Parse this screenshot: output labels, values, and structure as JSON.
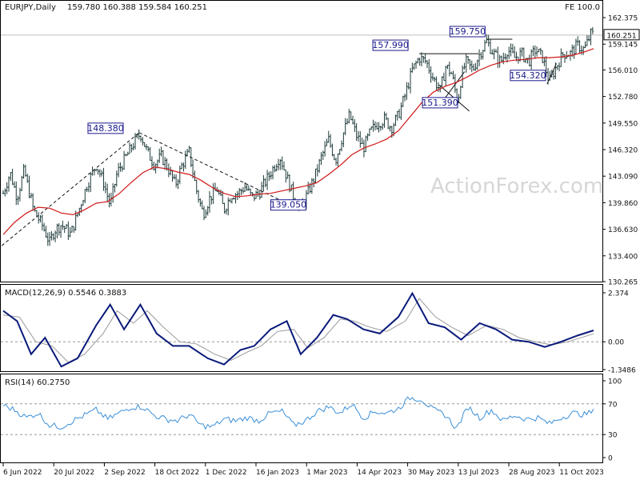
{
  "header": {
    "symbol_label": "EURJPY,Daily",
    "ohlc": "159.780 160.388 159.584 160.251",
    "fe_label": "FE 100.0",
    "watermark": "ActionForex.com"
  },
  "colors": {
    "candles": "#1f3a3a",
    "ma": "#d01818",
    "macd": "#0a1a7a",
    "signal": "#9a9a9a",
    "rsi": "#3b8fd8",
    "annotation": "#1a1a8c"
  },
  "chart_data": [
    {
      "type": "candlestick",
      "panel": "price",
      "ylim": [
        130.265,
        162.375
      ],
      "yticks": [
        "162.375",
        "159.145",
        "156.010",
        "152.780",
        "149.550",
        "146.320",
        "143.090",
        "139.860",
        "136.630",
        "133.400",
        "130.265"
      ],
      "last_price": "160.251",
      "x_dates": [
        "6 Jun 2022",
        "20 Jul 2022",
        "2 Sep 2022",
        "18 Oct 2022",
        "1 Dec 2022",
        "16 Jan 2023",
        "1 Mar 2023",
        "14 Apr 2023",
        "30 May 2023",
        "13 Jul 2023",
        "28 Aug 2023",
        "11 Oct 2023"
      ],
      "close_path": [
        {
          "d": 0,
          "v": 141.0
        },
        {
          "d": 6,
          "v": 143.5
        },
        {
          "d": 12,
          "v": 140.5
        },
        {
          "d": 18,
          "v": 143.8
        },
        {
          "d": 26,
          "v": 139.0
        },
        {
          "d": 34,
          "v": 137.0
        },
        {
          "d": 40,
          "v": 135.0
        },
        {
          "d": 44,
          "v": 136.5
        },
        {
          "d": 50,
          "v": 137.2
        },
        {
          "d": 58,
          "v": 136.0
        },
        {
          "d": 64,
          "v": 138.5
        },
        {
          "d": 72,
          "v": 142.0
        },
        {
          "d": 80,
          "v": 144.5
        },
        {
          "d": 86,
          "v": 142.5
        },
        {
          "d": 92,
          "v": 139.5
        },
        {
          "d": 98,
          "v": 143.5
        },
        {
          "d": 106,
          "v": 145.5
        },
        {
          "d": 112,
          "v": 147.0
        },
        {
          "d": 118,
          "v": 148.3
        },
        {
          "d": 124,
          "v": 146.0
        },
        {
          "d": 130,
          "v": 144.5
        },
        {
          "d": 136,
          "v": 145.5
        },
        {
          "d": 142,
          "v": 144.0
        },
        {
          "d": 148,
          "v": 142.0
        },
        {
          "d": 154,
          "v": 144.5
        },
        {
          "d": 160,
          "v": 146.0
        },
        {
          "d": 166,
          "v": 141.5
        },
        {
          "d": 172,
          "v": 138.5
        },
        {
          "d": 178,
          "v": 140.5
        },
        {
          "d": 184,
          "v": 141.5
        },
        {
          "d": 190,
          "v": 139.0
        },
        {
          "d": 196,
          "v": 140.8
        },
        {
          "d": 202,
          "v": 141.0
        },
        {
          "d": 208,
          "v": 141.8
        },
        {
          "d": 214,
          "v": 140.5
        },
        {
          "d": 220,
          "v": 141.0
        },
        {
          "d": 226,
          "v": 142.5
        },
        {
          "d": 232,
          "v": 144.0
        },
        {
          "d": 238,
          "v": 145.5
        },
        {
          "d": 244,
          "v": 143.0
        },
        {
          "d": 250,
          "v": 140.5
        },
        {
          "d": 256,
          "v": 139.2
        },
        {
          "d": 262,
          "v": 141.0
        },
        {
          "d": 268,
          "v": 143.0
        },
        {
          "d": 274,
          "v": 145.5
        },
        {
          "d": 280,
          "v": 147.5
        },
        {
          "d": 286,
          "v": 145.0
        },
        {
          "d": 292,
          "v": 148.0
        },
        {
          "d": 298,
          "v": 150.5
        },
        {
          "d": 304,
          "v": 148.0
        },
        {
          "d": 310,
          "v": 146.5
        },
        {
          "d": 316,
          "v": 148.5
        },
        {
          "d": 322,
          "v": 149.5
        },
        {
          "d": 328,
          "v": 150.0
        },
        {
          "d": 334,
          "v": 149.0
        },
        {
          "d": 340,
          "v": 150.5
        },
        {
          "d": 346,
          "v": 153.0
        },
        {
          "d": 352,
          "v": 156.0
        },
        {
          "d": 358,
          "v": 157.5
        },
        {
          "d": 364,
          "v": 157.0
        },
        {
          "d": 370,
          "v": 155.0
        },
        {
          "d": 376,
          "v": 153.5
        },
        {
          "d": 381,
          "v": 156.5
        },
        {
          "d": 386,
          "v": 155.5
        },
        {
          "d": 391,
          "v": 152.0
        },
        {
          "d": 394,
          "v": 155.0
        },
        {
          "d": 398,
          "v": 157.0
        },
        {
          "d": 404,
          "v": 156.0
        },
        {
          "d": 410,
          "v": 158.0
        },
        {
          "d": 416,
          "v": 159.5
        },
        {
          "d": 422,
          "v": 158.0
        },
        {
          "d": 428,
          "v": 157.0
        },
        {
          "d": 434,
          "v": 158.5
        },
        {
          "d": 440,
          "v": 157.5
        },
        {
          "d": 446,
          "v": 158.0
        },
        {
          "d": 452,
          "v": 157.0
        },
        {
          "d": 458,
          "v": 158.5
        },
        {
          "d": 464,
          "v": 157.5
        },
        {
          "d": 470,
          "v": 154.5
        },
        {
          "d": 476,
          "v": 156.5
        },
        {
          "d": 482,
          "v": 158.0
        },
        {
          "d": 488,
          "v": 158.0
        },
        {
          "d": 494,
          "v": 159.0
        },
        {
          "d": 500,
          "v": 158.5
        },
        {
          "d": 506,
          "v": 160.5
        },
        {
          "d": 508,
          "v": 160.25
        }
      ],
      "ma_path": [
        {
          "d": 0,
          "v": 136.0
        },
        {
          "d": 10,
          "v": 137.5
        },
        {
          "d": 20,
          "v": 138.6
        },
        {
          "d": 30,
          "v": 139.3
        },
        {
          "d": 40,
          "v": 139.2
        },
        {
          "d": 50,
          "v": 138.6
        },
        {
          "d": 60,
          "v": 138.4
        },
        {
          "d": 70,
          "v": 139.0
        },
        {
          "d": 80,
          "v": 139.8
        },
        {
          "d": 90,
          "v": 140.0
        },
        {
          "d": 100,
          "v": 141.0
        },
        {
          "d": 110,
          "v": 142.3
        },
        {
          "d": 120,
          "v": 143.5
        },
        {
          "d": 130,
          "v": 144.2
        },
        {
          "d": 140,
          "v": 144.0
        },
        {
          "d": 150,
          "v": 143.6
        },
        {
          "d": 160,
          "v": 143.3
        },
        {
          "d": 170,
          "v": 142.6
        },
        {
          "d": 180,
          "v": 141.7
        },
        {
          "d": 190,
          "v": 141.0
        },
        {
          "d": 200,
          "v": 140.6
        },
        {
          "d": 210,
          "v": 140.7
        },
        {
          "d": 220,
          "v": 140.9
        },
        {
          "d": 230,
          "v": 141.0
        },
        {
          "d": 240,
          "v": 141.3
        },
        {
          "d": 250,
          "v": 141.6
        },
        {
          "d": 260,
          "v": 141.9
        },
        {
          "d": 270,
          "v": 142.3
        },
        {
          "d": 280,
          "v": 143.3
        },
        {
          "d": 290,
          "v": 144.4
        },
        {
          "d": 300,
          "v": 145.7
        },
        {
          "d": 310,
          "v": 146.5
        },
        {
          "d": 320,
          "v": 147.0
        },
        {
          "d": 330,
          "v": 147.6
        },
        {
          "d": 340,
          "v": 148.6
        },
        {
          "d": 350,
          "v": 150.3
        },
        {
          "d": 360,
          "v": 152.0
        },
        {
          "d": 370,
          "v": 153.3
        },
        {
          "d": 380,
          "v": 154.0
        },
        {
          "d": 390,
          "v": 154.5
        },
        {
          "d": 400,
          "v": 155.2
        },
        {
          "d": 410,
          "v": 156.0
        },
        {
          "d": 420,
          "v": 156.6
        },
        {
          "d": 430,
          "v": 157.0
        },
        {
          "d": 440,
          "v": 157.2
        },
        {
          "d": 450,
          "v": 157.3
        },
        {
          "d": 460,
          "v": 157.5
        },
        {
          "d": 470,
          "v": 157.5
        },
        {
          "d": 480,
          "v": 157.6
        },
        {
          "d": 490,
          "v": 157.8
        },
        {
          "d": 500,
          "v": 158.2
        },
        {
          "d": 508,
          "v": 158.6
        }
      ],
      "annotations": [
        {
          "text": "148.380",
          "d": 117,
          "v": 148.38
        },
        {
          "text": "139.050",
          "d": 255,
          "v": 139.05
        },
        {
          "text": "157.990",
          "d": 358,
          "v": 157.99
        },
        {
          "text": "151.390",
          "d": 391,
          "v": 151.39
        },
        {
          "text": "159.750",
          "d": 416,
          "v": 159.75
        },
        {
          "text": "154.320",
          "d": 468,
          "v": 154.32
        }
      ],
      "trendlines": [
        {
          "from": {
            "d": -5,
            "v": 134.2
          },
          "to": {
            "d": 117,
            "v": 148.38
          }
        },
        {
          "from": {
            "d": 117,
            "v": 148.38
          },
          "to": {
            "d": 255,
            "v": 139.05
          }
        },
        {
          "from": {
            "d": 358,
            "v": 157.99
          },
          "to": {
            "d": 409,
            "v": 157.99
          }
        },
        {
          "from": {
            "d": 375,
            "v": 154.2
          },
          "to": {
            "d": 401,
            "v": 151.0
          }
        },
        {
          "from": {
            "d": 376,
            "v": 151.8
          },
          "to": {
            "d": 397,
            "v": 155.8
          }
        },
        {
          "from": {
            "d": 416,
            "v": 159.75
          },
          "to": {
            "d": 438,
            "v": 159.75
          }
        },
        {
          "from": {
            "d": 468,
            "v": 154.32
          },
          "to": {
            "d": 476,
            "v": 156.8
          }
        }
      ]
    },
    {
      "type": "line",
      "panel": "macd",
      "label": "MACD(12,26,9) 0.5546 0.3883",
      "ylim": [
        -1.3486,
        2.374
      ],
      "yticks": [
        "2.374",
        "0.00",
        "-1.3486"
      ],
      "macd_path": [
        {
          "d": 0,
          "v": 1.5
        },
        {
          "d": 12,
          "v": 1.0
        },
        {
          "d": 24,
          "v": -0.6
        },
        {
          "d": 36,
          "v": 0.2
        },
        {
          "d": 50,
          "v": -1.2
        },
        {
          "d": 64,
          "v": -0.8
        },
        {
          "d": 80,
          "v": 0.8
        },
        {
          "d": 92,
          "v": 1.8
        },
        {
          "d": 104,
          "v": 0.6
        },
        {
          "d": 118,
          "v": 1.8
        },
        {
          "d": 132,
          "v": 0.4
        },
        {
          "d": 146,
          "v": -0.2
        },
        {
          "d": 160,
          "v": -0.2
        },
        {
          "d": 176,
          "v": -0.8
        },
        {
          "d": 190,
          "v": -1.1
        },
        {
          "d": 204,
          "v": -0.4
        },
        {
          "d": 216,
          "v": -0.2
        },
        {
          "d": 230,
          "v": 0.6
        },
        {
          "d": 244,
          "v": 1.0
        },
        {
          "d": 256,
          "v": -0.6
        },
        {
          "d": 270,
          "v": 0.2
        },
        {
          "d": 284,
          "v": 1.3
        },
        {
          "d": 296,
          "v": 1.1
        },
        {
          "d": 310,
          "v": 0.6
        },
        {
          "d": 324,
          "v": 0.4
        },
        {
          "d": 340,
          "v": 1.2
        },
        {
          "d": 352,
          "v": 2.35
        },
        {
          "d": 366,
          "v": 0.9
        },
        {
          "d": 380,
          "v": 0.7
        },
        {
          "d": 394,
          "v": 0.1
        },
        {
          "d": 410,
          "v": 0.9
        },
        {
          "d": 424,
          "v": 0.6
        },
        {
          "d": 438,
          "v": 0.1
        },
        {
          "d": 452,
          "v": 0.0
        },
        {
          "d": 466,
          "v": -0.25
        },
        {
          "d": 480,
          "v": 0.0
        },
        {
          "d": 494,
          "v": 0.3
        },
        {
          "d": 508,
          "v": 0.55
        }
      ],
      "signal_path": [
        {
          "d": 0,
          "v": 1.3
        },
        {
          "d": 14,
          "v": 1.2
        },
        {
          "d": 28,
          "v": 0.0
        },
        {
          "d": 42,
          "v": -0.2
        },
        {
          "d": 56,
          "v": -1.0
        },
        {
          "d": 70,
          "v": -0.6
        },
        {
          "d": 86,
          "v": 0.4
        },
        {
          "d": 98,
          "v": 1.5
        },
        {
          "d": 112,
          "v": 0.9
        },
        {
          "d": 124,
          "v": 1.5
        },
        {
          "d": 138,
          "v": 0.7
        },
        {
          "d": 152,
          "v": 0.0
        },
        {
          "d": 166,
          "v": -0.1
        },
        {
          "d": 182,
          "v": -0.6
        },
        {
          "d": 196,
          "v": -0.9
        },
        {
          "d": 210,
          "v": -0.5
        },
        {
          "d": 222,
          "v": -0.2
        },
        {
          "d": 236,
          "v": 0.5
        },
        {
          "d": 250,
          "v": 0.6
        },
        {
          "d": 262,
          "v": -0.3
        },
        {
          "d": 276,
          "v": 0.2
        },
        {
          "d": 290,
          "v": 1.1
        },
        {
          "d": 302,
          "v": 1.0
        },
        {
          "d": 316,
          "v": 0.7
        },
        {
          "d": 330,
          "v": 0.5
        },
        {
          "d": 346,
          "v": 1.0
        },
        {
          "d": 358,
          "v": 2.1
        },
        {
          "d": 372,
          "v": 1.2
        },
        {
          "d": 386,
          "v": 0.7
        },
        {
          "d": 400,
          "v": 0.3
        },
        {
          "d": 416,
          "v": 0.8
        },
        {
          "d": 430,
          "v": 0.6
        },
        {
          "d": 444,
          "v": 0.2
        },
        {
          "d": 458,
          "v": 0.0
        },
        {
          "d": 472,
          "v": -0.15
        },
        {
          "d": 486,
          "v": 0.0
        },
        {
          "d": 500,
          "v": 0.25
        },
        {
          "d": 508,
          "v": 0.39
        }
      ]
    },
    {
      "type": "line",
      "panel": "rsi",
      "label": "RSI(14) 60.2750",
      "ylim": [
        0,
        100
      ],
      "yticks": [
        "100",
        "70",
        "30",
        "0"
      ],
      "levels": [
        70,
        30
      ],
      "rsi_path": [
        {
          "d": 0,
          "v": 68
        },
        {
          "d": 10,
          "v": 62
        },
        {
          "d": 20,
          "v": 52
        },
        {
          "d": 30,
          "v": 58
        },
        {
          "d": 40,
          "v": 42
        },
        {
          "d": 50,
          "v": 40
        },
        {
          "d": 60,
          "v": 48
        },
        {
          "d": 70,
          "v": 55
        },
        {
          "d": 80,
          "v": 62
        },
        {
          "d": 90,
          "v": 50
        },
        {
          "d": 100,
          "v": 58
        },
        {
          "d": 110,
          "v": 66
        },
        {
          "d": 120,
          "v": 66
        },
        {
          "d": 130,
          "v": 55
        },
        {
          "d": 140,
          "v": 50
        },
        {
          "d": 150,
          "v": 48
        },
        {
          "d": 160,
          "v": 56
        },
        {
          "d": 170,
          "v": 42
        },
        {
          "d": 180,
          "v": 40
        },
        {
          "d": 190,
          "v": 50
        },
        {
          "d": 200,
          "v": 48
        },
        {
          "d": 210,
          "v": 52
        },
        {
          "d": 220,
          "v": 48
        },
        {
          "d": 230,
          "v": 58
        },
        {
          "d": 240,
          "v": 60
        },
        {
          "d": 250,
          "v": 42
        },
        {
          "d": 260,
          "v": 48
        },
        {
          "d": 270,
          "v": 60
        },
        {
          "d": 280,
          "v": 66
        },
        {
          "d": 290,
          "v": 58
        },
        {
          "d": 300,
          "v": 70
        },
        {
          "d": 310,
          "v": 52
        },
        {
          "d": 320,
          "v": 60
        },
        {
          "d": 330,
          "v": 58
        },
        {
          "d": 340,
          "v": 64
        },
        {
          "d": 350,
          "v": 78
        },
        {
          "d": 360,
          "v": 76
        },
        {
          "d": 370,
          "v": 62
        },
        {
          "d": 380,
          "v": 56
        },
        {
          "d": 390,
          "v": 38
        },
        {
          "d": 400,
          "v": 66
        },
        {
          "d": 410,
          "v": 52
        },
        {
          "d": 420,
          "v": 62
        },
        {
          "d": 430,
          "v": 48
        },
        {
          "d": 440,
          "v": 55
        },
        {
          "d": 450,
          "v": 50
        },
        {
          "d": 460,
          "v": 52
        },
        {
          "d": 470,
          "v": 44
        },
        {
          "d": 480,
          "v": 52
        },
        {
          "d": 490,
          "v": 58
        },
        {
          "d": 500,
          "v": 56
        },
        {
          "d": 508,
          "v": 60
        }
      ]
    }
  ]
}
